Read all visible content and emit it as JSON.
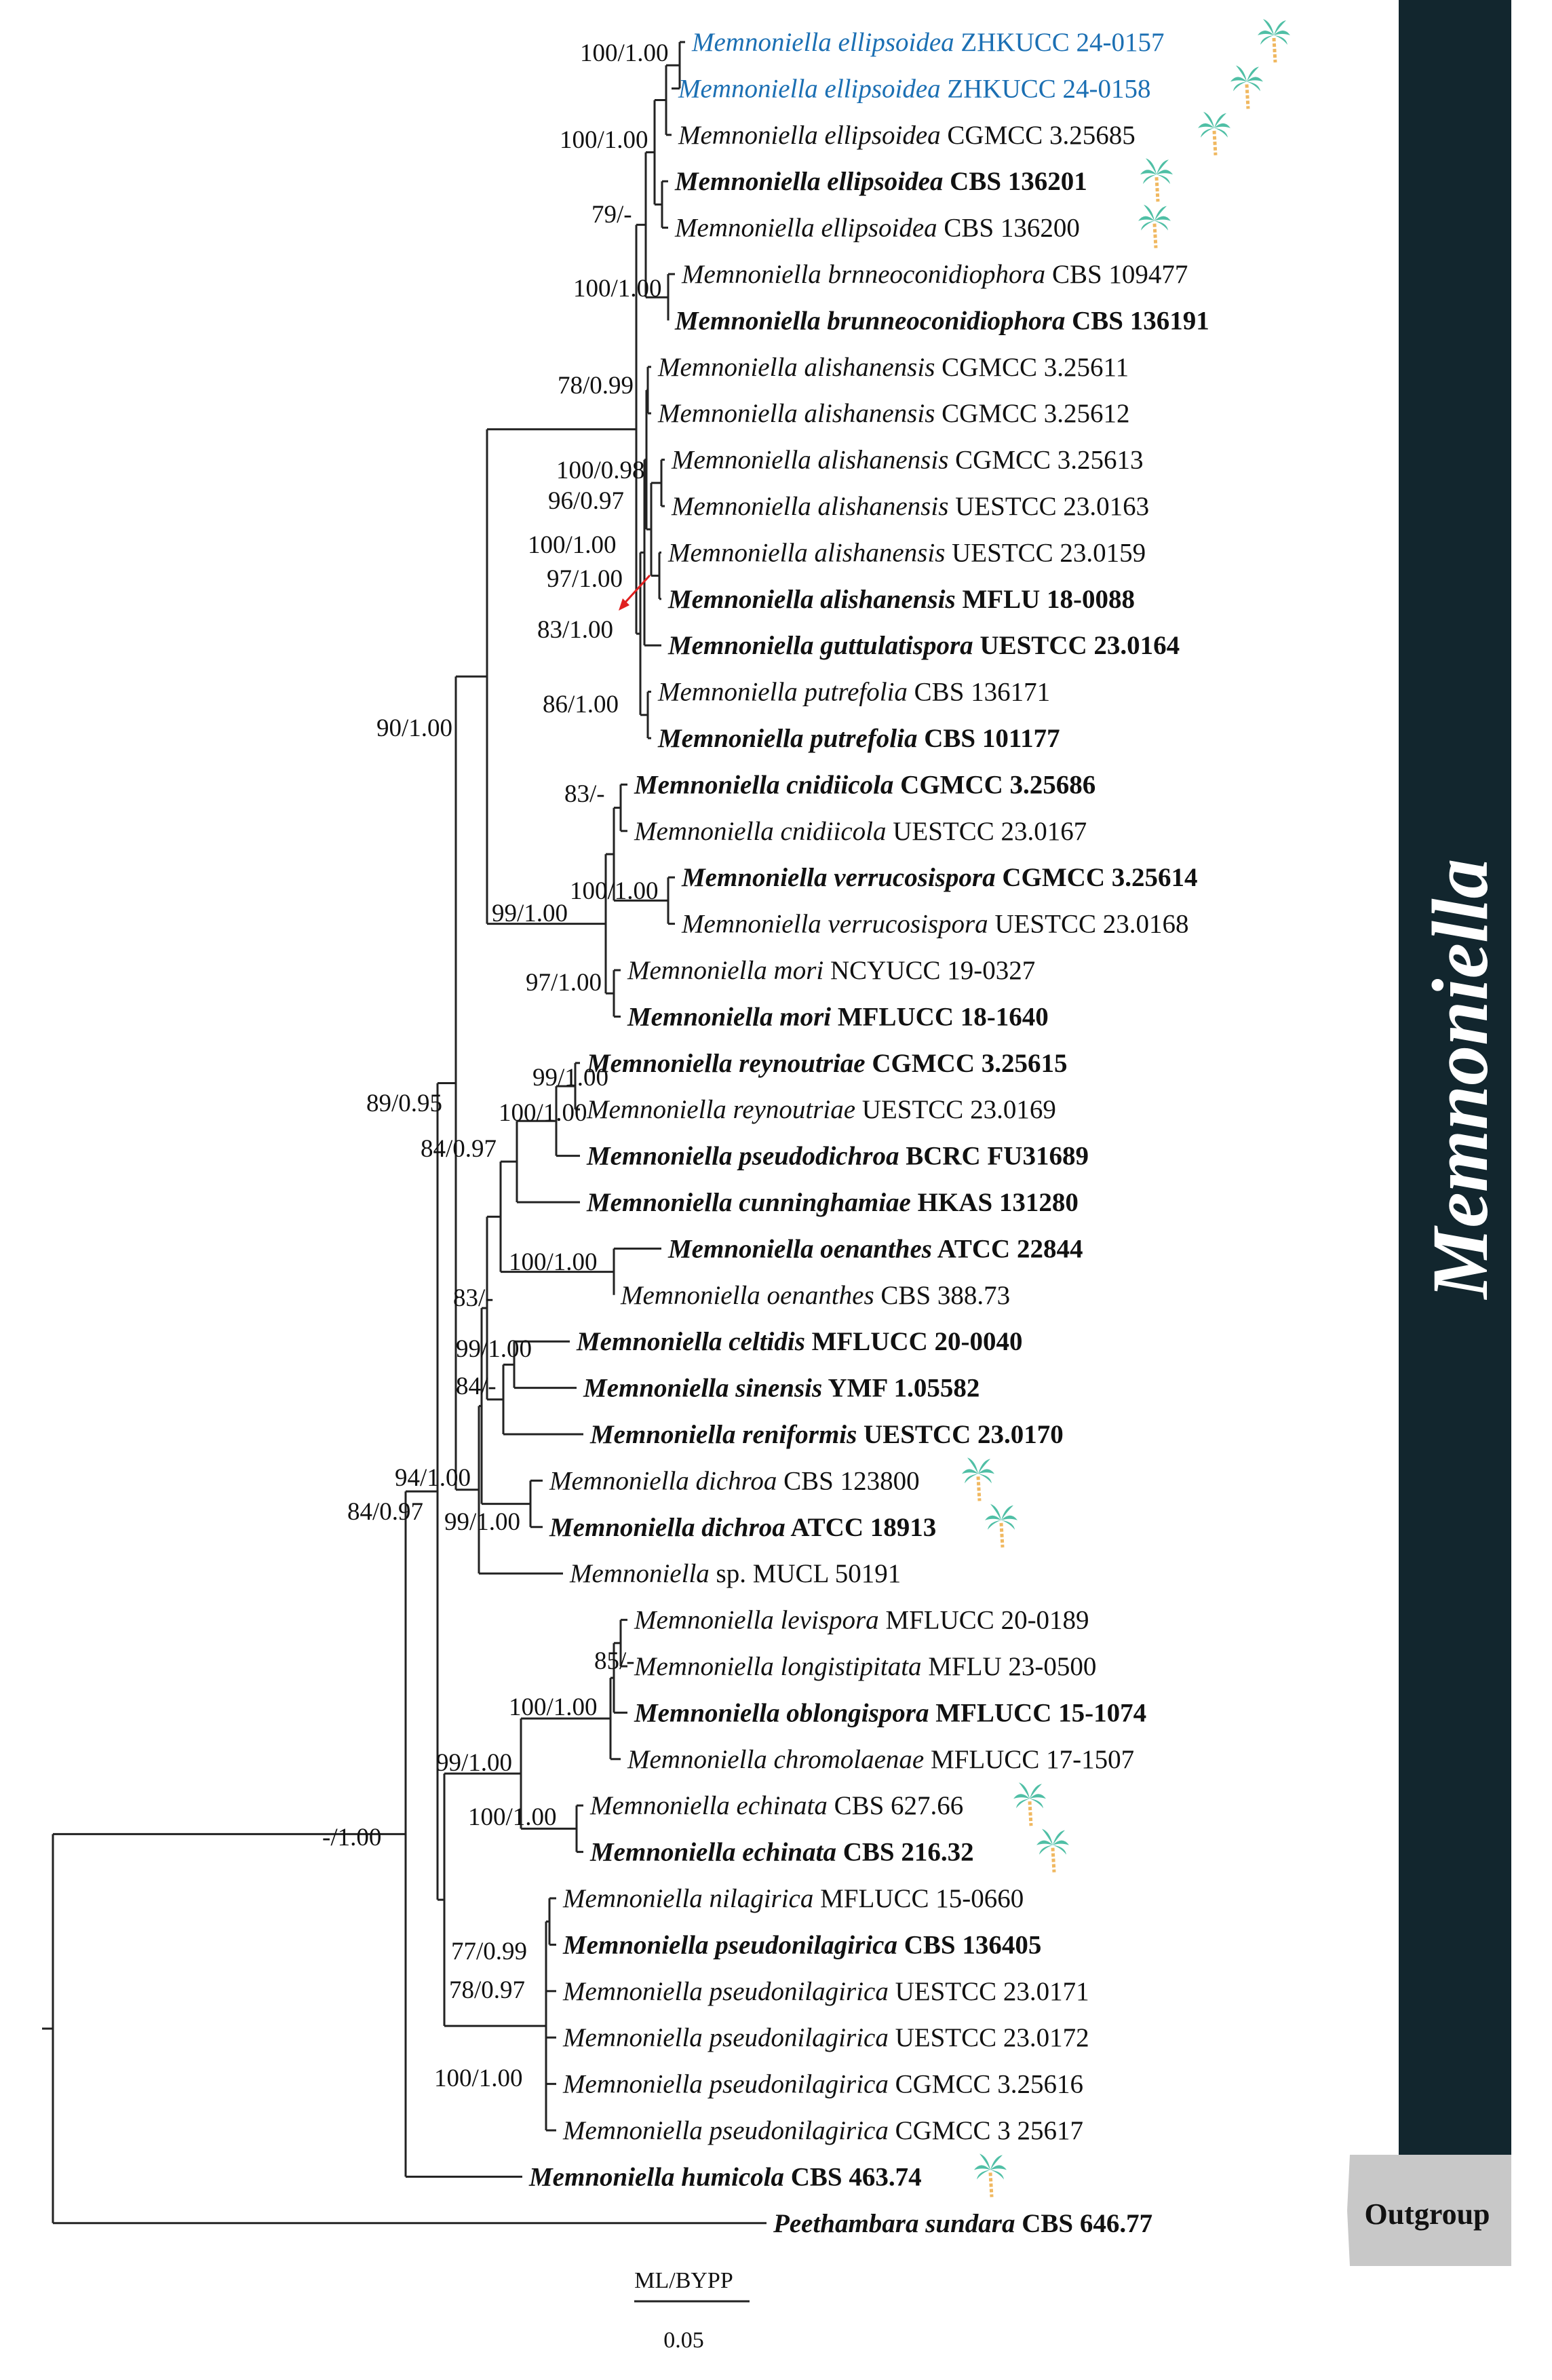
{
  "clade_label": "Memnoniella",
  "outgroup_label": "Outgroup",
  "scale": {
    "title": "ML/BYPP",
    "value": "0.05"
  },
  "taxa": [
    {
      "name": "Memnoniella ellipsoidea",
      "code": "ZHKUCC 24-0157",
      "bold": false,
      "color": "blue",
      "palm": true
    },
    {
      "name": "Memnoniella ellipsoidea",
      "code": "ZHKUCC 24-0158",
      "bold": false,
      "color": "blue",
      "palm": true
    },
    {
      "name": "Memnoniella ellipsoidea",
      "code": "CGMCC 3.25685",
      "bold": false,
      "palm": true
    },
    {
      "name": "Memnoniella ellipsoidea",
      "code": "CBS 136201",
      "bold": true,
      "palm": true
    },
    {
      "name": "Memnoniella ellipsoidea",
      "code": "CBS 136200",
      "bold": false,
      "palm": true
    },
    {
      "name": "Memnoniella brnneoconidiophora",
      "code": "CBS 109477",
      "bold": false
    },
    {
      "name": "Memnoniella brunneoconidiophora",
      "code": "CBS 136191",
      "bold": true
    },
    {
      "name": "Memnoniella alishanensis",
      "code": "CGMCC 3.25611",
      "bold": false
    },
    {
      "name": "Memnoniella alishanensis",
      "code": "CGMCC 3.25612",
      "bold": false
    },
    {
      "name": "Memnoniella alishanensis",
      "code": "CGMCC 3.25613",
      "bold": false
    },
    {
      "name": "Memnoniella alishanensis",
      "code": "UESTCC 23.0163",
      "bold": false
    },
    {
      "name": "Memnoniella alishanensis",
      "code": "UESTCC 23.0159",
      "bold": false
    },
    {
      "name": "Memnoniella alishanensis",
      "code": "MFLU 18-0088",
      "bold": true
    },
    {
      "name": "Memnoniella guttulatispora",
      "code": "UESTCC 23.0164",
      "bold": true
    },
    {
      "name": "Memnoniella putrefolia",
      "code": "CBS 136171",
      "bold": false
    },
    {
      "name": "Memnoniella putrefolia",
      "code": "CBS 101177",
      "bold": true
    },
    {
      "name": "Memnoniella cnidiicola",
      "code": "CGMCC 3.25686",
      "bold": true
    },
    {
      "name": "Memnoniella cnidiicola",
      "code": "UESTCC 23.0167",
      "bold": false
    },
    {
      "name": "Memnoniella verrucosispora",
      "code": "CGMCC 3.25614",
      "bold": true
    },
    {
      "name": "Memnoniella verrucosispora",
      "code": "UESTCC 23.0168",
      "bold": false
    },
    {
      "name": "Memnoniella mori",
      "code": "NCYUCC 19-0327",
      "bold": false
    },
    {
      "name": "Memnoniella mori",
      "code": "MFLUCC 18-1640",
      "bold": true
    },
    {
      "name": "Memnoniella reynoutriae",
      "code": "CGMCC 3.25615",
      "bold": true
    },
    {
      "name": "Memnoniella reynoutriae",
      "code": "UESTCC 23.0169",
      "bold": false
    },
    {
      "name": "Memnoniella pseudodichroa",
      "code": "BCRC FU31689",
      "bold": true
    },
    {
      "name": "Memnoniella cunninghamiae",
      "code": "HKAS 131280",
      "bold": true
    },
    {
      "name": "Memnoniella oenanthes",
      "code": "ATCC 22844",
      "bold": true
    },
    {
      "name": "Memnoniella oenanthes",
      "code": "CBS 388.73",
      "bold": false
    },
    {
      "name": "Memnoniella celtidis",
      "code": "MFLUCC 20-0040",
      "bold": true
    },
    {
      "name": "Memnoniella sinensis",
      "code": "YMF 1.05582",
      "bold": true
    },
    {
      "name": "Memnoniella reniformis",
      "code": "UESTCC 23.0170",
      "bold": true
    },
    {
      "name": "Memnoniella dichroa",
      "code": "CBS 123800",
      "bold": false,
      "palm": true
    },
    {
      "name": "Memnoniella dichroa",
      "code": "ATCC 18913",
      "bold": true,
      "palm": true
    },
    {
      "name": "Memnoniella",
      "epithet_plain": "sp.",
      "code": "MUCL 50191",
      "bold": false
    },
    {
      "name": "Memnoniella levispora",
      "code": "MFLUCC 20-0189",
      "bold": false
    },
    {
      "name": "Memnoniella longistipitata",
      "code": "MFLU 23-0500",
      "bold": false
    },
    {
      "name": "Memnoniella oblongispora",
      "code": "MFLUCC 15-1074",
      "bold": true
    },
    {
      "name": "Memnoniella chromolaenae",
      "code": "MFLUCC 17-1507",
      "bold": false
    },
    {
      "name": "Memnoniella echinata",
      "code": "CBS 627.66",
      "bold": false,
      "palm": true
    },
    {
      "name": "Memnoniella echinata",
      "code": "CBS 216.32",
      "bold": true,
      "palm": true
    },
    {
      "name": "Memnoniella nilagirica",
      "code": "MFLUCC 15-0660",
      "bold": false
    },
    {
      "name": "Memnoniella pseudonilagirica",
      "code": "CBS 136405",
      "bold": true
    },
    {
      "name": "Memnoniella pseudonilagirica",
      "code": "UESTCC 23.0171",
      "bold": false
    },
    {
      "name": "Memnoniella pseudonilagirica",
      "code": "UESTCC 23.0172",
      "bold": false
    },
    {
      "name": "Memnoniella pseudonilagirica",
      "code": "CGMCC 3.25616",
      "bold": false
    },
    {
      "name": "Memnoniella pseudonilagirica",
      "code": "CGMCC 3 25617",
      "bold": false
    },
    {
      "name": "Memnoniella humicola",
      "code": "CBS 463.74",
      "bold": true,
      "palm": true
    },
    {
      "name": "Peethambara sundara",
      "code": "CBS 646.77",
      "bold": true
    }
  ],
  "supports": [
    {
      "id": "s1",
      "text": "100/1.00"
    },
    {
      "id": "s2",
      "text": "100/1.00"
    },
    {
      "id": "s3",
      "text": "79/-"
    },
    {
      "id": "s4",
      "text": "100/1.00"
    },
    {
      "id": "s5",
      "text": "78/0.99"
    },
    {
      "id": "s6",
      "text": "100/0.98"
    },
    {
      "id": "s7",
      "text": "96/0.97"
    },
    {
      "id": "s8",
      "text": "100/1.00"
    },
    {
      "id": "s9",
      "text": "97/1.00"
    },
    {
      "id": "s10",
      "text": "83/1.00"
    },
    {
      "id": "s11",
      "text": "86/1.00"
    },
    {
      "id": "s12",
      "text": "90/1.00"
    },
    {
      "id": "s13",
      "text": "83/-"
    },
    {
      "id": "s14",
      "text": "100/1.00"
    },
    {
      "id": "s15",
      "text": "99/1.00"
    },
    {
      "id": "s16",
      "text": "97/1.00"
    },
    {
      "id": "s17",
      "text": "99/1.00"
    },
    {
      "id": "s18",
      "text": "89/0.95"
    },
    {
      "id": "s19",
      "text": "100/1.00"
    },
    {
      "id": "s20",
      "text": "84/0.97"
    },
    {
      "id": "s21",
      "text": "100/1.00"
    },
    {
      "id": "s22",
      "text": "83/-"
    },
    {
      "id": "s23",
      "text": "99/1.00"
    },
    {
      "id": "s24",
      "text": "84/-"
    },
    {
      "id": "s25",
      "text": "94/1.00"
    },
    {
      "id": "s26",
      "text": "99/1.00"
    },
    {
      "id": "s27",
      "text": "84/0.97"
    },
    {
      "id": "s28",
      "text": "85/-"
    },
    {
      "id": "s29",
      "text": "100/1.00"
    },
    {
      "id": "s30",
      "text": "99/1.00"
    },
    {
      "id": "s31",
      "text": "100/1.00"
    },
    {
      "id": "s32",
      "text": "-/1.00"
    },
    {
      "id": "s33",
      "text": "77/0.99"
    },
    {
      "id": "s34",
      "text": "78/0.97"
    },
    {
      "id": "s35",
      "text": "100/1.00"
    }
  ],
  "colors": {
    "clade_bar": "#12262e",
    "outgroup_box": "#c8c8c8",
    "highlight_blue": "#1b6fb3",
    "palm_leaf": "#4fbfa5",
    "palm_trunk": "#f0b860",
    "arrow": "#e02020"
  }
}
